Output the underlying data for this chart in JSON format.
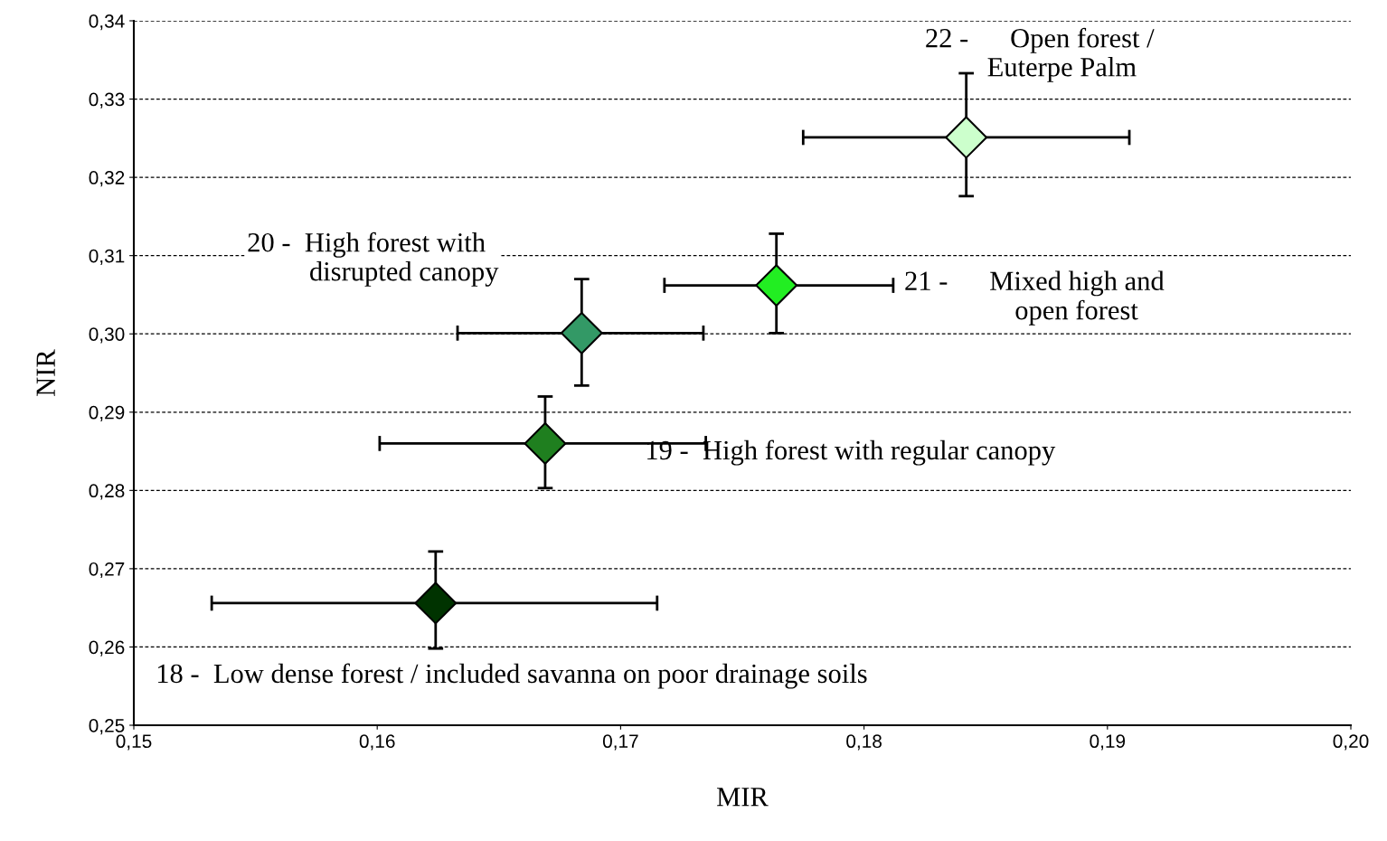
{
  "chart_data": {
    "type": "scatter",
    "xlabel": "MIR",
    "ylabel": "NIR",
    "x": [
      0.1624,
      0.1669,
      0.1684,
      0.1764,
      0.1842
    ],
    "values": [
      0.2656,
      0.286,
      0.3001,
      0.3062,
      0.3251
    ],
    "colors": [
      "#003300",
      "#1f7f1f",
      "#339966",
      "#22ee22",
      "#ccffcc"
    ],
    "errors": [
      [
        0.2598,
        0.2722
      ],
      [
        0.2803,
        0.292
      ],
      [
        0.2934,
        0.307
      ],
      [
        0.3001,
        0.3128
      ],
      [
        0.3176,
        0.3333
      ]
    ],
    "xerrors": [
      [
        0.1532,
        0.1715
      ],
      [
        0.1601,
        0.1735
      ],
      [
        0.1633,
        0.1734
      ],
      [
        0.1718,
        0.1812
      ],
      [
        0.1775,
        0.1909
      ]
    ],
    "marker": "diamond",
    "grid": "y",
    "legend": false,
    "xlim": [
      0.15,
      0.2
    ],
    "ylim": [
      0.25,
      0.34
    ],
    "xticks": [
      {
        "value": 0.15,
        "label": "0,15"
      },
      {
        "value": 0.16,
        "label": "0,16"
      },
      {
        "value": 0.17,
        "label": "0,17"
      },
      {
        "value": 0.18,
        "label": "0,18"
      },
      {
        "value": 0.19,
        "label": "0,19"
      },
      {
        "value": 0.2,
        "label": "0,20"
      }
    ],
    "yticks": [
      {
        "value": 0.25,
        "label": "0,25"
      },
      {
        "value": 0.26,
        "label": "0,26"
      },
      {
        "value": 0.27,
        "label": "0,27"
      },
      {
        "value": 0.28,
        "label": "0,28"
      },
      {
        "value": 0.29,
        "label": "0,29"
      },
      {
        "value": 0.3,
        "label": "0,30"
      },
      {
        "value": 0.31,
        "label": "0,31"
      },
      {
        "value": 0.32,
        "label": "0,32"
      },
      {
        "value": 0.33,
        "label": "0,33"
      },
      {
        "value": 0.34,
        "label": "0,34"
      }
    ],
    "annotations": [
      "18 -  Low dense forest / included savanna on poor drainage soils",
      "19 -  High forest with regular canopy",
      "20 -  High forest with\n         disrupted canopy",
      "21 -      Mixed high and\n                open forest",
      "22 -      Open forest /\n         Euterpe Palm"
    ]
  }
}
